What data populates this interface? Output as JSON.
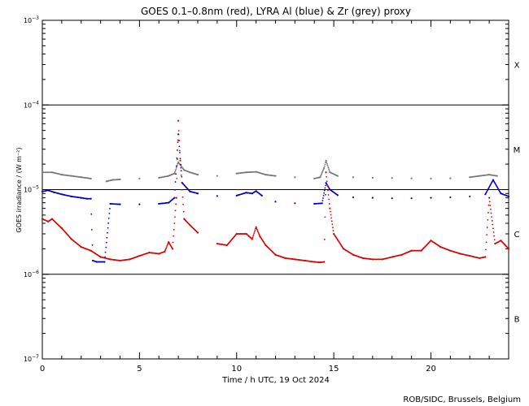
{
  "chart_data": {
    "type": "scatter",
    "title": "GOES 0.1–0.8nm (red), LYRA Al (blue) & Zr (grey) proxy",
    "xlabel": "Time / h UTC, 19 Oct 2024",
    "ylabel": "GOES irradiance / (W m⁻²)",
    "credit": "ROB/SIDC, Brussels, Belgium",
    "xlim": [
      0,
      24
    ],
    "ylim": [
      1e-07,
      0.001
    ],
    "yscale": "log",
    "x_ticks": [
      0,
      5,
      10,
      15,
      20
    ],
    "x_tick_labels": [
      "0",
      "5",
      "10",
      "15",
      "20"
    ],
    "y_ticks": [
      0.001,
      0.0001,
      1e-05,
      1e-06,
      1e-07
    ],
    "y_tick_labels": [
      {
        "base": "10",
        "exp": "−3"
      },
      {
        "base": "10",
        "exp": "−4"
      },
      {
        "base": "10",
        "exp": "−5"
      },
      {
        "base": "10",
        "exp": "−6"
      },
      {
        "base": "10",
        "exp": "−7"
      }
    ],
    "class_lines": [
      0.0001,
      1e-05,
      1e-06
    ],
    "class_labels": [
      {
        "label": "X",
        "y": 0.0003
      },
      {
        "label": "M",
        "y": 3e-05
      },
      {
        "label": "C",
        "y": 3e-06
      },
      {
        "label": "B",
        "y": 3e-07
      }
    ],
    "series": [
      {
        "color": "#777777",
        "x": [
          0,
          0.5,
          1,
          1.5,
          2,
          2.5,
          3.3,
          3.6,
          4,
          5,
          6,
          6.5,
          6.8,
          7.0,
          7.3,
          7.6,
          8,
          9,
          10,
          10.5,
          11,
          11.5,
          12,
          13,
          14,
          14.3,
          14.5,
          14.6,
          14.8,
          15.2,
          16,
          17,
          18,
          19,
          20,
          21,
          22,
          22.5,
          23.0,
          23.4,
          24
        ],
        "y": [
          1.6e-05,
          1.6e-05,
          1.5e-05,
          1.45e-05,
          1.4e-05,
          1.35e-05,
          1.25e-05,
          1.3e-05,
          1.32e-05,
          1.35e-05,
          1.38e-05,
          1.45e-05,
          1.55e-05,
          2.1e-05,
          1.7e-05,
          1.6e-05,
          1.5e-05,
          1.45e-05,
          1.55e-05,
          1.6e-05,
          1.62e-05,
          1.5e-05,
          1.45e-05,
          1.4e-05,
          1.35e-05,
          1.4e-05,
          1.8e-05,
          2.2e-05,
          1.6e-05,
          1.45e-05,
          1.4e-05,
          1.38e-05,
          1.37e-05,
          1.36e-05,
          1.35e-05,
          1.36e-05,
          1.4e-05,
          1.45e-05,
          1.5e-05,
          1.45e-05,
          1.4e-05
        ]
      },
      {
        "color": "#0000cc",
        "x": [
          0,
          0.3,
          0.6,
          1,
          1.5,
          2,
          2.3,
          2.5,
          2.6,
          2.8,
          3.2,
          3.5,
          4,
          5,
          6,
          6.5,
          6.8,
          7.0,
          7.2,
          7.6,
          8,
          9,
          10,
          10.5,
          10.8,
          11,
          11.3,
          12,
          13,
          14,
          14.4,
          14.6,
          14.8,
          15.2,
          16,
          17,
          18,
          19,
          20,
          21,
          22,
          22.8,
          23.2,
          23.6,
          24
        ],
        "y": [
          9.5e-06,
          9.8e-06,
          9.3e-06,
          8.8e-06,
          8.3e-06,
          8e-06,
          7.8e-06,
          7.8e-06,
          1.45e-06,
          1.4e-06,
          1.4e-06,
          6.8e-06,
          6.7e-06,
          6.7e-06,
          6.8e-06,
          7e-06,
          8e-06,
          4.5e-05,
          1.2e-05,
          9.5e-06,
          9e-06,
          8.4e-06,
          8.5e-06,
          9.2e-06,
          9e-06,
          9.6e-06,
          8.5e-06,
          7.2e-06,
          6.9e-06,
          6.8e-06,
          6.9e-06,
          1.2e-05,
          1e-05,
          8.6e-06,
          8.1e-06,
          8e-06,
          7.9e-06,
          7.9e-06,
          8e-06,
          8.1e-06,
          8.3e-06,
          8.8e-06,
          1.3e-05,
          9e-06,
          8.3e-06
        ]
      },
      {
        "color": "#dd0000",
        "x": [
          0,
          0.3,
          0.5,
          1,
          1.5,
          2,
          2.5,
          3,
          3.5,
          4,
          4.5,
          5,
          5.5,
          6,
          6.3,
          6.5,
          6.7,
          6.9,
          7.0,
          7.1,
          7.3,
          7.6,
          8,
          9,
          9.5,
          10,
          10.5,
          10.8,
          11,
          11.2,
          11.5,
          12,
          12.5,
          13,
          13.5,
          14,
          14.3,
          14.5,
          14.6,
          14.8,
          15,
          15.5,
          16,
          16.5,
          17,
          17.5,
          18,
          18.5,
          19,
          19.5,
          20,
          20.5,
          21,
          21.5,
          22,
          22.5,
          22.8,
          23.0,
          23.3,
          23.6,
          24
        ],
        "y": [
          4.5e-06,
          4.2e-06,
          4.5e-06,
          3.5e-06,
          2.6e-06,
          2.1e-06,
          1.9e-06,
          1.6e-06,
          1.5e-06,
          1.45e-06,
          1.5e-06,
          1.65e-06,
          1.8e-06,
          1.75e-06,
          1.85e-06,
          2.4e-06,
          2e-06,
          8e-06,
          6.5e-05,
          2.2e-05,
          4.5e-06,
          3.8e-06,
          3.1e-06,
          2.3e-06,
          2.2e-06,
          3e-06,
          3e-06,
          2.6e-06,
          3.6e-06,
          2.8e-06,
          2.2e-06,
          1.7e-06,
          1.55e-06,
          1.5e-06,
          1.45e-06,
          1.4e-06,
          1.38e-06,
          1.4e-06,
          1.6e-05,
          6e-06,
          3e-06,
          2e-06,
          1.7e-06,
          1.55e-06,
          1.5e-06,
          1.5e-06,
          1.6e-06,
          1.7e-06,
          1.9e-06,
          1.9e-06,
          2.5e-06,
          2.1e-06,
          1.9e-06,
          1.75e-06,
          1.65e-06,
          1.55e-06,
          1.6e-06,
          8e-06,
          2.3e-06,
          2.5e-06,
          2e-06
        ]
      }
    ],
    "grid": false,
    "legend": "none"
  }
}
